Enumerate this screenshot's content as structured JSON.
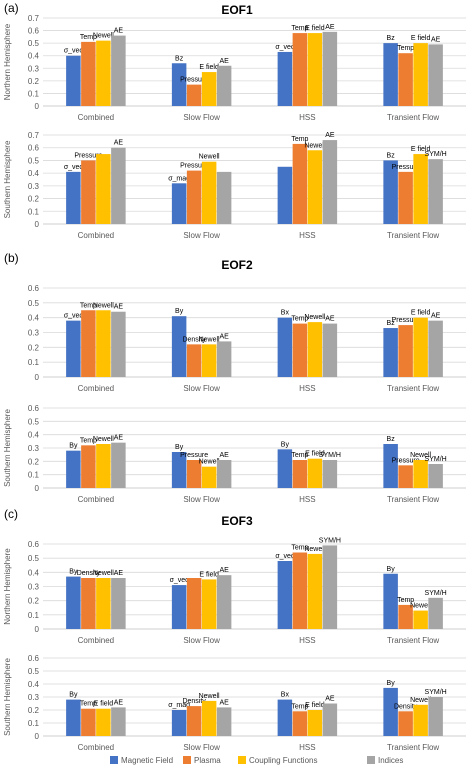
{
  "colors": {
    "magnetic": "#4472C4",
    "plasma": "#ED7D31",
    "coupling": "#FFC000",
    "indices": "#A5A5A5",
    "grid": "#D9D9D9"
  },
  "legend": {
    "items": [
      {
        "name": "Magnetic Field",
        "color": "#4472C4"
      },
      {
        "name": "Plasma",
        "color": "#ED7D31"
      },
      {
        "name": "Coupling Functions",
        "color": "#FFC000"
      },
      {
        "name": "Indices",
        "color": "#A5A5A5"
      }
    ]
  },
  "chart_data": [
    {
      "panel": "(a)",
      "title": "EOF1",
      "type": "bar",
      "ylabel": "Northern Hemisphere",
      "ylim": [
        0,
        0.7
      ],
      "categories": [
        "Combined",
        "Slow Flow",
        "HSS",
        "Transient Flow"
      ],
      "series": [
        {
          "name": "Magnetic Field",
          "values": [
            0.4,
            0.34,
            0.43,
            0.5
          ],
          "labels": [
            "σ_vec",
            "Bz",
            "σ_vec",
            "Bz"
          ]
        },
        {
          "name": "Plasma",
          "values": [
            0.51,
            0.17,
            0.58,
            0.42
          ],
          "labels": [
            "Temp",
            "Pressure",
            "Temp",
            "Temp"
          ]
        },
        {
          "name": "Coupling Functions",
          "values": [
            0.52,
            0.27,
            0.58,
            0.5
          ],
          "labels": [
            "Newell",
            "E field",
            "E field",
            "E field"
          ]
        },
        {
          "name": "Indices",
          "values": [
            0.56,
            0.32,
            0.59,
            0.49
          ],
          "labels": [
            "AE",
            "AE",
            "AE",
            "AE"
          ]
        }
      ]
    },
    {
      "panel": "",
      "title": "",
      "type": "bar",
      "ylabel": "Southern Hemisphere",
      "ylim": [
        0,
        0.7
      ],
      "categories": [
        "Combined",
        "Slow Flow",
        "HSS",
        "Transient Flow"
      ],
      "series": [
        {
          "name": "Magnetic Field",
          "values": [
            0.41,
            0.32,
            0.45,
            0.5
          ],
          "labels": [
            "σ_vec",
            "σ_mag",
            "",
            "Bz"
          ]
        },
        {
          "name": "Plasma",
          "values": [
            0.5,
            0.42,
            0.63,
            0.41
          ],
          "labels": [
            "Pressure",
            "Pressure",
            "Temp",
            "Pressure"
          ]
        },
        {
          "name": "Coupling Functions",
          "values": [
            0.55,
            0.49,
            0.58,
            0.55
          ],
          "labels": [
            "",
            "Newell",
            "Newell",
            "E field"
          ]
        },
        {
          "name": "Indices",
          "values": [
            0.6,
            0.41,
            0.66,
            0.51
          ],
          "labels": [
            "AE",
            "",
            "AE",
            "SYM/H"
          ]
        }
      ]
    },
    {
      "panel": "(b)",
      "title": "EOF2",
      "type": "bar",
      "ylabel": "",
      "ylim": [
        0,
        0.6
      ],
      "categories": [
        "Combined",
        "Slow Flow",
        "HSS",
        "Transient Flow"
      ],
      "series": [
        {
          "name": "Magnetic Field",
          "values": [
            0.38,
            0.41,
            0.4,
            0.33
          ],
          "labels": [
            "σ_vec",
            "By",
            "Bx",
            "Bz"
          ]
        },
        {
          "name": "Plasma",
          "values": [
            0.45,
            0.22,
            0.36,
            0.35
          ],
          "labels": [
            "Temp",
            "Density",
            "Temp",
            "Pressure"
          ]
        },
        {
          "name": "Coupling Functions",
          "values": [
            0.45,
            0.22,
            0.37,
            0.4
          ],
          "labels": [
            "Newell",
            "Newell",
            "Newell",
            "E field"
          ]
        },
        {
          "name": "Indices",
          "values": [
            0.44,
            0.24,
            0.36,
            0.38
          ],
          "labels": [
            "AE",
            "AE",
            "AE",
            "AE"
          ]
        }
      ]
    },
    {
      "panel": "",
      "title": "",
      "type": "bar",
      "ylabel": "Southern Hemisphere",
      "ylim": [
        0,
        0.6
      ],
      "categories": [
        "Combined",
        "Slow Flow",
        "HSS",
        "Transient Flow"
      ],
      "series": [
        {
          "name": "Magnetic Field",
          "values": [
            0.28,
            0.27,
            0.29,
            0.33
          ],
          "labels": [
            "By",
            "By",
            "By",
            "Bz"
          ]
        },
        {
          "name": "Plasma",
          "values": [
            0.32,
            0.21,
            0.21,
            0.17
          ],
          "labels": [
            "Temp",
            "Pressure",
            "Temp",
            "Pressure"
          ]
        },
        {
          "name": "Coupling Functions",
          "values": [
            0.33,
            0.16,
            0.22,
            0.21
          ],
          "labels": [
            "Newell",
            "Newell",
            "E field",
            "Newell"
          ]
        },
        {
          "name": "Indices",
          "values": [
            0.34,
            0.21,
            0.21,
            0.18
          ],
          "labels": [
            "AE",
            "AE",
            "SYM/H",
            "SYM/H"
          ]
        }
      ]
    },
    {
      "panel": "(c)",
      "title": "EOF3",
      "type": "bar",
      "ylabel": "Northern Hemisphere",
      "ylim": [
        0,
        0.6
      ],
      "categories": [
        "Combined",
        "Slow Flow",
        "HSS",
        "Transient Flow"
      ],
      "series": [
        {
          "name": "Magnetic Field",
          "values": [
            0.37,
            0.31,
            0.48,
            0.39
          ],
          "labels": [
            "By",
            "σ_vec",
            "σ_vec",
            "By"
          ]
        },
        {
          "name": "Plasma",
          "values": [
            0.36,
            0.36,
            0.54,
            0.17
          ],
          "labels": [
            "Density",
            "",
            "Temp",
            "Temp"
          ]
        },
        {
          "name": "Coupling Functions",
          "values": [
            0.36,
            0.35,
            0.53,
            0.13
          ],
          "labels": [
            "Newell",
            "E field",
            "Newell",
            "Newell"
          ]
        },
        {
          "name": "Indices",
          "values": [
            0.36,
            0.38,
            0.59,
            0.22
          ],
          "labels": [
            "AE",
            "AE",
            "SYM/H",
            "SYM/H"
          ]
        }
      ]
    },
    {
      "panel": "",
      "title": "",
      "type": "bar",
      "ylabel": "Southern Hemisphere",
      "ylim": [
        0,
        0.6
      ],
      "categories": [
        "Combined",
        "Slow Flow",
        "HSS",
        "Transient Flow"
      ],
      "series": [
        {
          "name": "Magnetic Field",
          "values": [
            0.28,
            0.2,
            0.28,
            0.37
          ],
          "labels": [
            "By",
            "σ_mag",
            "Bx",
            "By"
          ]
        },
        {
          "name": "Plasma",
          "values": [
            0.21,
            0.23,
            0.19,
            0.19
          ],
          "labels": [
            "Temp",
            "Density",
            "Temp",
            "Density"
          ]
        },
        {
          "name": "Coupling Functions",
          "values": [
            0.21,
            0.27,
            0.2,
            0.24
          ],
          "labels": [
            "E field",
            "Newell",
            "E field",
            "Newell"
          ]
        },
        {
          "name": "Indices",
          "values": [
            0.22,
            0.22,
            0.25,
            0.3
          ],
          "labels": [
            "AE",
            "AE",
            "AE",
            "SYM/H"
          ]
        }
      ]
    }
  ]
}
